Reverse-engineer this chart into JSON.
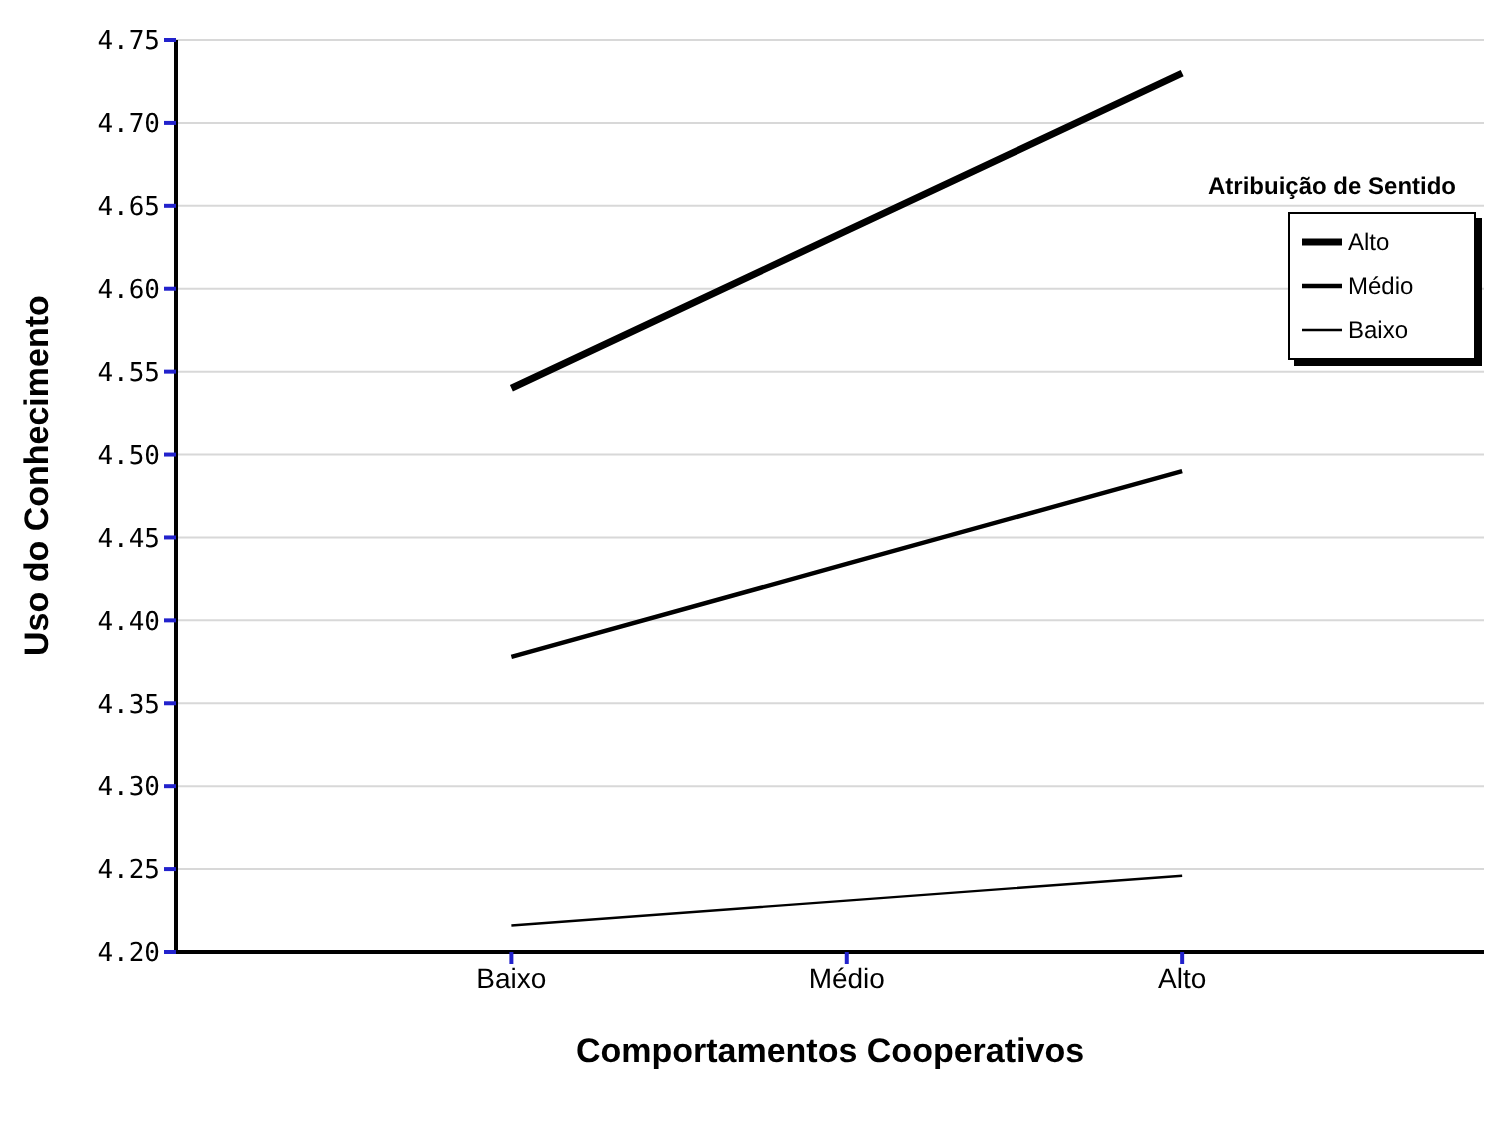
{
  "chart_data": {
    "type": "line",
    "xlabel": "Comportamentos Cooperativos",
    "ylabel": "Uso do Conhecimento",
    "legend_title": "Atribuição de Sentido",
    "categories": [
      "Baixo",
      "Médio",
      "Alto"
    ],
    "series": [
      {
        "name": "Alto",
        "color": "#000000",
        "values": [
          4.54,
          4.635,
          4.73
        ]
      },
      {
        "name": "Médio",
        "color": "#000000",
        "values": [
          4.378,
          4.434,
          4.49
        ]
      },
      {
        "name": "Baixo",
        "color": "#000000",
        "values": [
          4.216,
          4.231,
          4.246
        ]
      }
    ],
    "ylim": [
      4.2,
      4.75
    ],
    "yticks": [
      {
        "value": 4.2,
        "label": "4.20"
      },
      {
        "value": 4.25,
        "label": "4.25"
      },
      {
        "value": 4.3,
        "label": "4.30"
      },
      {
        "value": 4.35,
        "label": "4.35"
      },
      {
        "value": 4.4,
        "label": "4.40"
      },
      {
        "value": 4.45,
        "label": "4.45"
      },
      {
        "value": 4.5,
        "label": "4.50"
      },
      {
        "value": 4.55,
        "label": "4.55"
      },
      {
        "value": 4.6,
        "label": "4.60"
      },
      {
        "value": 4.65,
        "label": "4.65"
      },
      {
        "value": 4.7,
        "label": "4.70"
      },
      {
        "value": 4.75,
        "label": "4.75"
      }
    ],
    "grid": "y",
    "legend": "top right",
    "marker": "none",
    "line_style": "solid"
  }
}
